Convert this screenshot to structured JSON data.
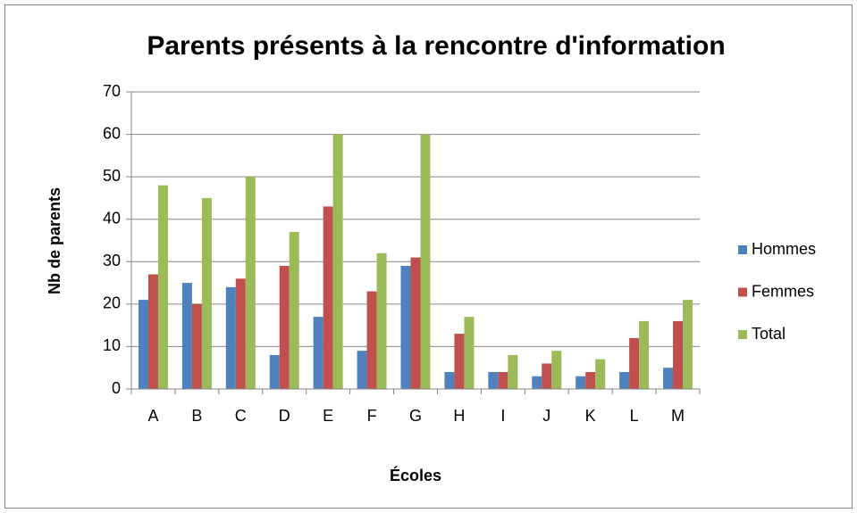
{
  "chart_data": {
    "type": "bar",
    "title": "Parents présents à la rencontre d'information",
    "x_label": "Écoles",
    "y_label": "Nb de parents",
    "categories": [
      "A",
      "B",
      "C",
      "D",
      "E",
      "F",
      "G",
      "H",
      "I",
      "J",
      "K",
      "L",
      "M"
    ],
    "series": [
      {
        "name": "Hommes",
        "color": "#4f81bd",
        "values": [
          21,
          25,
          24,
          8,
          17,
          9,
          29,
          4,
          4,
          3,
          3,
          4,
          5
        ]
      },
      {
        "name": "Femmes",
        "color": "#c0504d",
        "values": [
          27,
          20,
          26,
          29,
          43,
          23,
          31,
          13,
          4,
          6,
          4,
          12,
          16
        ]
      },
      {
        "name": "Total",
        "color": "#9bbb59",
        "values": [
          48,
          45,
          50,
          37,
          60,
          32,
          60,
          17,
          8,
          9,
          7,
          16,
          21
        ]
      }
    ],
    "ylim": [
      0,
      70
    ],
    "yticks": [
      0,
      10,
      20,
      30,
      40,
      50,
      60,
      70
    ],
    "grid": true,
    "legend": "right"
  }
}
